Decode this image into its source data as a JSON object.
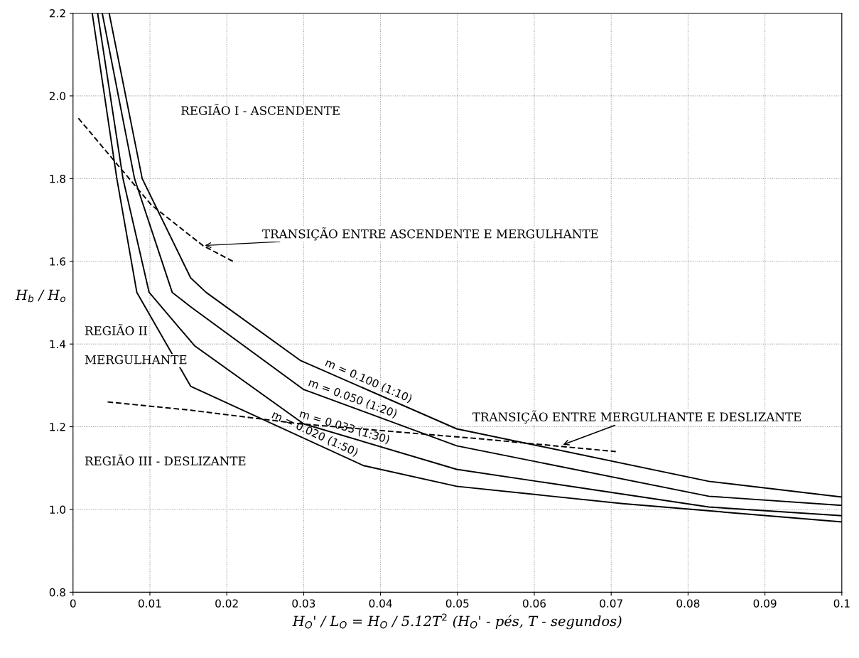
{
  "chart_data": {
    "type": "line",
    "xlabel": "H$_{O}$' / L$_{O}$ = H$_{O}$ / 5.12T$^{2}$ (H$_{O}$' - pés, T - segundos)",
    "ylabel": "H$_{b}$ / H$_{o}$",
    "xlim": [
      0,
      0.1
    ],
    "xticks": [
      0,
      0.01,
      0.02,
      0.03,
      0.04,
      0.05,
      0.06,
      0.07,
      0.08,
      0.09,
      0.1
    ],
    "ylim": [
      0.8,
      2.2
    ],
    "yticks": [
      0.8,
      {
        "value": 1,
        "label": "1.0"
      },
      1.2,
      1.4,
      1.6,
      1.8,
      {
        "value": 2,
        "label": "2.0"
      },
      2.2
    ],
    "grid": true,
    "legend": false,
    "marker": "none",
    "series": [
      {
        "name": "m = 0.100 (1:10)",
        "color": "#000000",
        "line_style": "solid",
        "x": [
          0.0047,
          0.009,
          0.0153,
          0.0173,
          0.0296,
          0.0499,
          0.0827,
          0.1
        ],
        "values": [
          2.2,
          1.8,
          1.56,
          1.525,
          1.36,
          1.195,
          1.068,
          1.03
        ]
      },
      {
        "name": "m = 0.050 (1:20)",
        "color": "#000000",
        "line_style": "solid",
        "x": [
          0.0038,
          0.008,
          0.0129,
          0.0153,
          0.03,
          0.0499,
          0.0827,
          0.1
        ],
        "values": [
          2.2,
          1.8,
          1.525,
          1.49,
          1.29,
          1.154,
          1.032,
          1.01
        ]
      },
      {
        "name": "m = 0.033 (1:30)",
        "color": "#000000",
        "line_style": "solid",
        "x": [
          0.0032,
          0.0065,
          0.0099,
          0.0158,
          0.03,
          0.0499,
          0.0827,
          0.1
        ],
        "values": [
          2.2,
          1.8,
          1.525,
          1.396,
          1.207,
          1.097,
          1.006,
          0.985
        ]
      },
      {
        "name": "m = 0.020 (1:50)",
        "color": "#000000",
        "line_style": "solid",
        "x": [
          0.0025,
          0.0057,
          0.0083,
          0.0153,
          0.0378,
          0.0499,
          0.0715,
          0.1
        ],
        "values": [
          2.2,
          1.8,
          1.525,
          1.298,
          1.106,
          1.056,
          1.014,
          0.97
        ]
      },
      {
        "color": "#000000",
        "line_style": "dashed",
        "x": [
          0.0007,
          0.0102,
          0.0169,
          0.0208
        ],
        "values": [
          1.946,
          1.736,
          1.638,
          1.6
        ]
      },
      {
        "color": "#000000",
        "line_style": "dashed",
        "x": [
          0.0045,
          0.0153,
          0.0296,
          0.0529,
          0.0706
        ],
        "values": [
          1.26,
          1.24,
          1.207,
          1.171,
          1.14
        ]
      }
    ],
    "annotations": [
      "REGIÃO I - ASCENDENTE",
      {
        "text": "TRANSIÇÃO ENTRE ASCENDENTE E MERGULHANTE",
        "x": 0.0169,
        "y": 1.638
      },
      "REGIÃO II",
      "MERGULHANTE",
      {
        "text": "TRANSIÇÃO ENTRE MERGULHANTE E DESLIZANTE",
        "x": 0.0635,
        "y": 1.155
      },
      "REGIÃO III - DESLIZANTE"
    ]
  }
}
